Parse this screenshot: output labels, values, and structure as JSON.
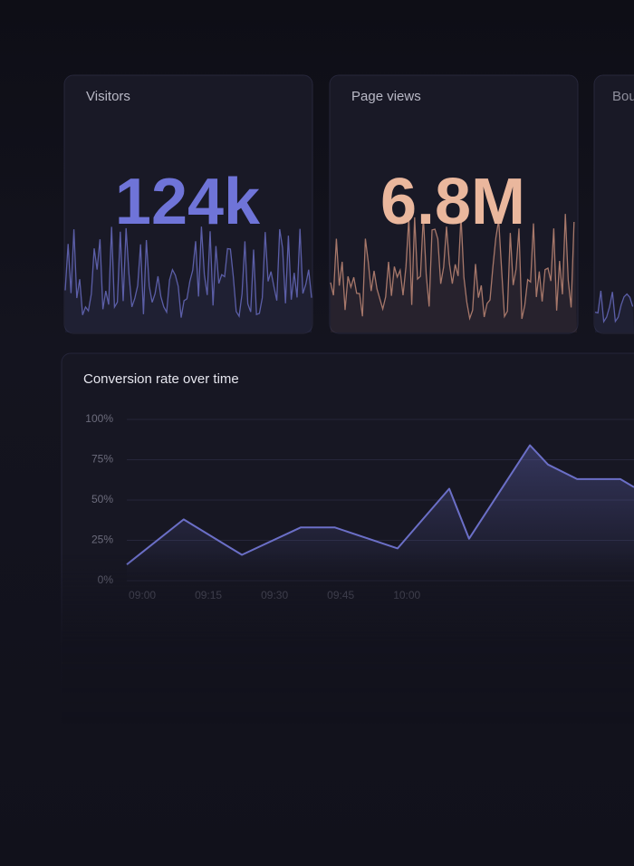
{
  "cards": [
    {
      "title": "Visitors",
      "value": "124k"
    },
    {
      "title": "Page views",
      "value": "6.8M"
    },
    {
      "title": "Bounce rate"
    }
  ],
  "chart_data": {
    "type": "area",
    "title": "Conversion rate over time",
    "x": [
      -3.5,
      9.4,
      22.6,
      35.9,
      43.7,
      57.9,
      69.6,
      74.1,
      87.9,
      92,
      98.6,
      108.4,
      111.5
    ],
    "values": [
      10,
      38,
      16,
      33,
      33,
      20,
      57,
      26,
      84,
      72,
      63,
      63,
      58
    ],
    "color": "#6b6fc7",
    "xlim": [
      -3.5,
      111.5
    ],
    "ylim": [
      0,
      100
    ],
    "xticks": [
      {
        "value": 0,
        "label": "09:00"
      },
      {
        "value": 15,
        "label": "09:15"
      },
      {
        "value": 30,
        "label": "09:30"
      },
      {
        "value": 45,
        "label": "09:45"
      },
      {
        "value": 60,
        "label": "10:00"
      }
    ],
    "yticks": [
      {
        "value": 0,
        "label": "0%"
      },
      {
        "value": 25,
        "label": "25%"
      },
      {
        "value": 50,
        "label": "50%"
      },
      {
        "value": 75,
        "label": "75%"
      },
      {
        "value": 100,
        "label": "100%"
      }
    ],
    "grid": true
  }
}
